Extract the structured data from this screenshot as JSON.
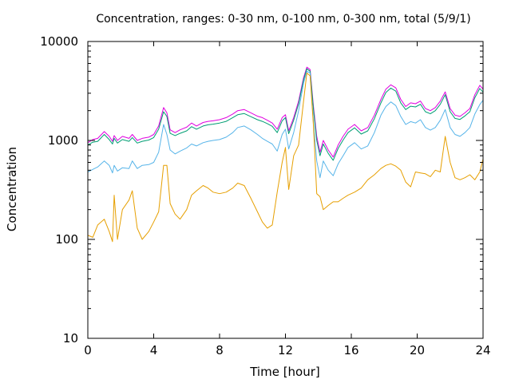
{
  "chart_data": {
    "type": "line",
    "title": "Concentration, ranges: 0-30 nm, 0-100 nm, 0-300 nm, total (5/9/1)",
    "xlabel": "Time [hour]",
    "ylabel": "Concentration",
    "xlim": [
      0,
      24
    ],
    "ylim": [
      10,
      10000
    ],
    "yscale": "log",
    "grid": false,
    "x_ticks": [
      0,
      4,
      8,
      12,
      16,
      20,
      24
    ],
    "x_tick_labels": [
      "0",
      "4",
      "8",
      "12",
      "16",
      "20",
      "24"
    ],
    "y_ticks": [
      10,
      100,
      1000,
      10000
    ],
    "y_tick_labels": [
      "10",
      "100",
      "1000",
      "10000"
    ],
    "x": [
      0,
      0.3,
      0.6,
      1.0,
      1.3,
      1.5,
      1.6,
      1.8,
      2.1,
      2.5,
      2.7,
      3.0,
      3.3,
      3.7,
      4.0,
      4.3,
      4.6,
      4.8,
      5.0,
      5.3,
      5.6,
      6.0,
      6.3,
      6.6,
      7.0,
      7.3,
      7.6,
      8.0,
      8.4,
      8.8,
      9.1,
      9.5,
      9.9,
      10.3,
      10.6,
      10.9,
      11.2,
      11.5,
      11.8,
      12.0,
      12.2,
      12.5,
      12.8,
      13.1,
      13.3,
      13.5,
      13.7,
      13.9,
      14.1,
      14.3,
      14.6,
      14.9,
      15.2,
      15.5,
      15.8,
      16.2,
      16.6,
      17.0,
      17.4,
      17.8,
      18.1,
      18.4,
      18.7,
      19.0,
      19.3,
      19.6,
      19.9,
      20.2,
      20.5,
      20.8,
      21.1,
      21.4,
      21.7,
      22.0,
      22.3,
      22.6,
      22.9,
      23.2,
      23.5,
      23.8,
      24.0
    ],
    "series": [
      {
        "color": "#e000e0",
        "values": [
          950,
          1020,
          1050,
          1230,
          1100,
          980,
          1120,
          1000,
          1100,
          1050,
          1150,
          1000,
          1050,
          1080,
          1150,
          1400,
          2150,
          1900,
          1280,
          1200,
          1280,
          1360,
          1500,
          1400,
          1520,
          1560,
          1580,
          1620,
          1700,
          1850,
          2000,
          2050,
          1900,
          1760,
          1700,
          1600,
          1500,
          1300,
          1700,
          1820,
          1250,
          1700,
          2500,
          4300,
          5500,
          5200,
          2200,
          1100,
          760,
          1000,
          800,
          680,
          900,
          1100,
          1300,
          1450,
          1250,
          1350,
          1800,
          2600,
          3300,
          3650,
          3400,
          2600,
          2200,
          2400,
          2350,
          2500,
          2100,
          2000,
          2150,
          2500,
          3100,
          2100,
          1800,
          1750,
          1900,
          2100,
          2900,
          3600,
          3300
        ]
      },
      {
        "color": "#009e73",
        "values": [
          900,
          960,
          980,
          1150,
          1020,
          920,
          1050,
          940,
          1020,
          980,
          1070,
          940,
          980,
          1010,
          1070,
          1300,
          1950,
          1750,
          1180,
          1120,
          1180,
          1250,
          1380,
          1300,
          1400,
          1440,
          1460,
          1500,
          1560,
          1700,
          1820,
          1870,
          1740,
          1620,
          1560,
          1480,
          1390,
          1200,
          1580,
          1700,
          1170,
          1600,
          2350,
          4100,
          5300,
          5000,
          2050,
          1000,
          700,
          920,
          740,
          630,
          830,
          1010,
          1200,
          1340,
          1160,
          1250,
          1660,
          2400,
          3050,
          3380,
          3150,
          2400,
          2050,
          2220,
          2180,
          2320,
          1950,
          1860,
          2000,
          2320,
          2900,
          1950,
          1670,
          1630,
          1770,
          1950,
          2700,
          3350,
          3080
        ]
      },
      {
        "color": "#56b4e9",
        "values": [
          480,
          510,
          540,
          620,
          560,
          470,
          560,
          490,
          530,
          520,
          620,
          520,
          560,
          570,
          600,
          760,
          1450,
          1150,
          800,
          730,
          780,
          840,
          920,
          880,
          950,
          980,
          1000,
          1020,
          1080,
          1200,
          1350,
          1400,
          1280,
          1150,
          1050,
          980,
          920,
          780,
          1150,
          1300,
          820,
          1200,
          2000,
          3800,
          5000,
          4800,
          1500,
          620,
          420,
          620,
          500,
          440,
          580,
          700,
          850,
          950,
          820,
          880,
          1200,
          1800,
          2200,
          2450,
          2250,
          1750,
          1450,
          1550,
          1500,
          1620,
          1350,
          1270,
          1350,
          1600,
          2050,
          1350,
          1150,
          1100,
          1200,
          1350,
          1850,
          2300,
          2550
        ]
      },
      {
        "color": "#e69f00",
        "values": [
          110,
          105,
          140,
          160,
          120,
          95,
          280,
          100,
          200,
          250,
          310,
          130,
          100,
          120,
          150,
          190,
          560,
          560,
          230,
          180,
          160,
          200,
          280,
          310,
          350,
          330,
          300,
          290,
          300,
          330,
          370,
          350,
          260,
          190,
          150,
          130,
          140,
          300,
          600,
          850,
          320,
          700,
          900,
          2500,
          4800,
          4500,
          1400,
          290,
          270,
          200,
          220,
          240,
          240,
          260,
          280,
          300,
          330,
          400,
          450,
          520,
          560,
          580,
          550,
          500,
          380,
          340,
          480,
          470,
          460,
          430,
          500,
          480,
          1100,
          600,
          420,
          400,
          420,
          450,
          400,
          480,
          650
        ]
      }
    ]
  }
}
